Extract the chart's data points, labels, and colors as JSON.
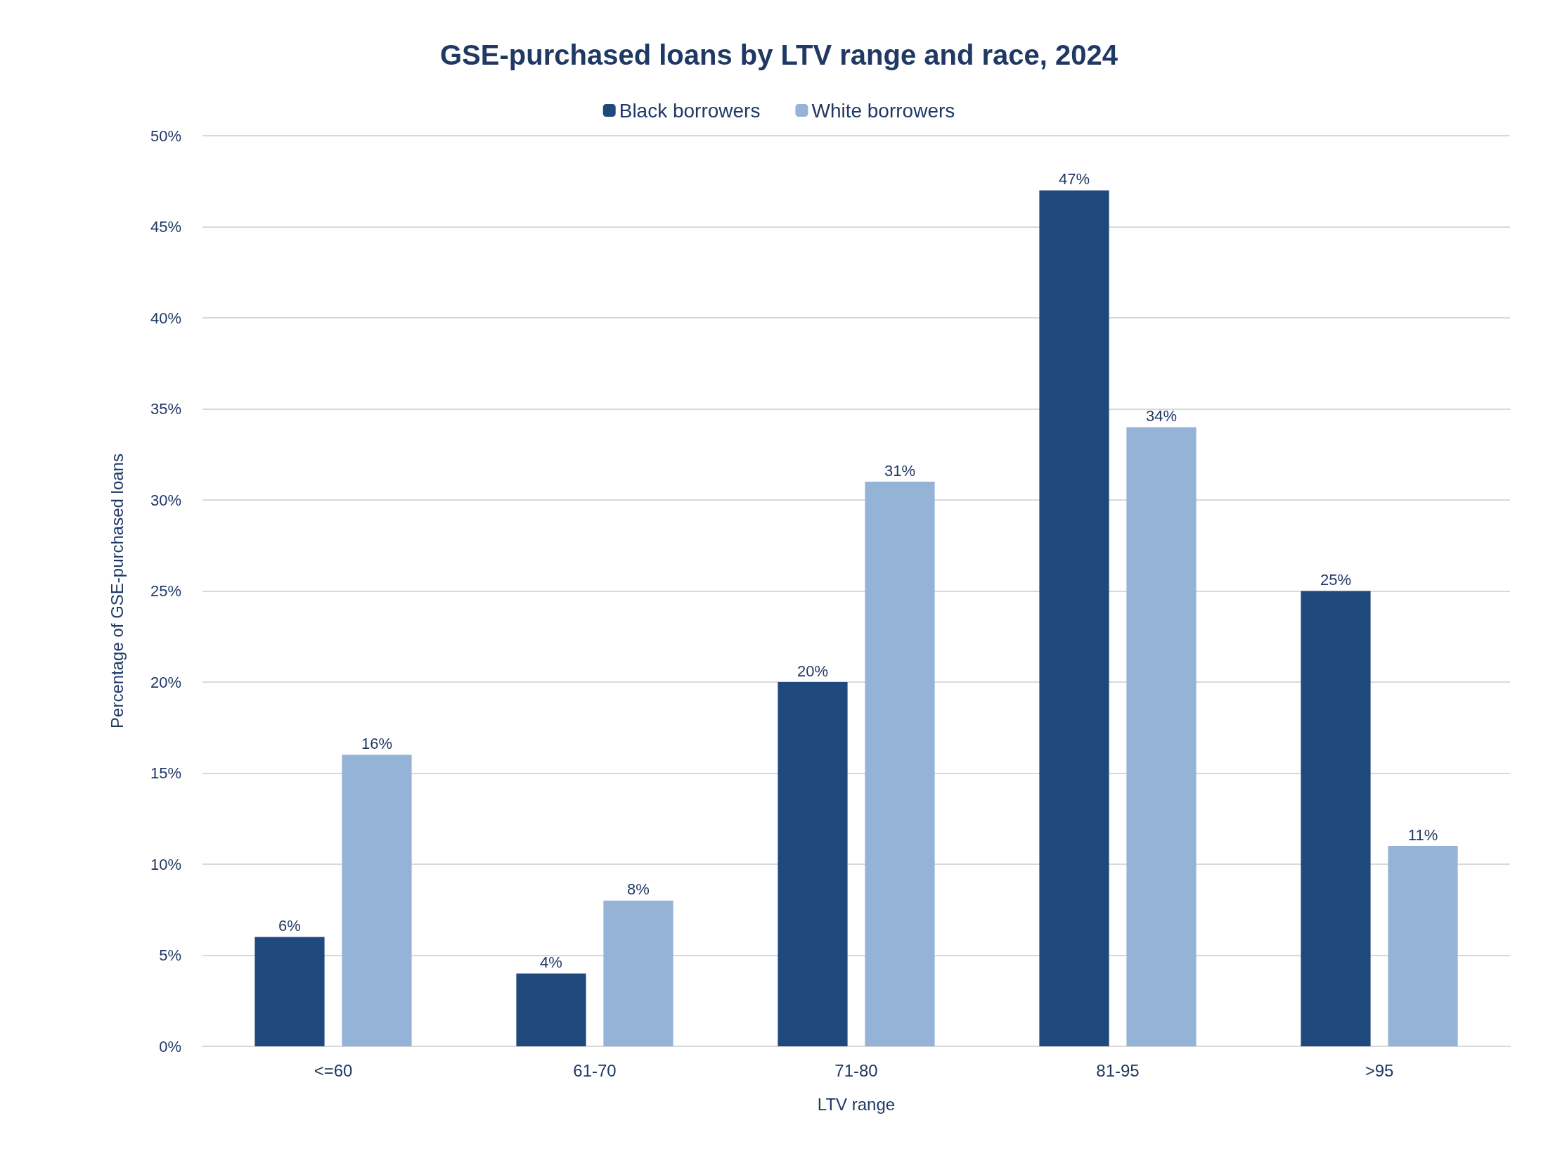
{
  "chart_data": {
    "type": "bar",
    "title": "GSE-purchased loans by LTV range and race, 2024",
    "xlabel": "LTV range",
    "ylabel": "Percentage of GSE-purchased loans",
    "categories": [
      "<=60",
      "61-70",
      "71-80",
      "81-95",
      ">95"
    ],
    "series": [
      {
        "name": "Black borrowers",
        "color": "#1f497d",
        "values": [
          6,
          4,
          20,
          47,
          25
        ],
        "value_labels": [
          "6%",
          "4%",
          "20%",
          "47%",
          "25%"
        ]
      },
      {
        "name": "White borrowers",
        "color": "#95b3d7",
        "values": [
          16,
          8,
          31,
          34,
          11
        ],
        "value_labels": [
          "16%",
          "8%",
          "31%",
          "34%",
          "11%"
        ]
      }
    ],
    "ylim": [
      0,
      50
    ],
    "yticks": [
      {
        "value": 0,
        "label": "0%"
      },
      {
        "value": 5,
        "label": "5%"
      },
      {
        "value": 10,
        "label": "10%"
      },
      {
        "value": 15,
        "label": "15%"
      },
      {
        "value": 20,
        "label": "20%"
      },
      {
        "value": 25,
        "label": "25%"
      },
      {
        "value": 30,
        "label": "30%"
      },
      {
        "value": 35,
        "label": "35%"
      },
      {
        "value": 40,
        "label": "40%"
      },
      {
        "value": 45,
        "label": "45%"
      },
      {
        "value": 50,
        "label": "50%"
      }
    ],
    "grid": "y",
    "legend": "top"
  }
}
